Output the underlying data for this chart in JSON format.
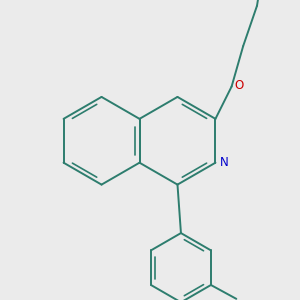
{
  "bg_color": "#ebebeb",
  "bond_color": "#2d7d6e",
  "N_color": "#0000cc",
  "O_color": "#cc0000",
  "line_width": 1.4,
  "font_size": 8.5,
  "fig_w": 3.0,
  "fig_h": 3.0,
  "dpi": 100
}
